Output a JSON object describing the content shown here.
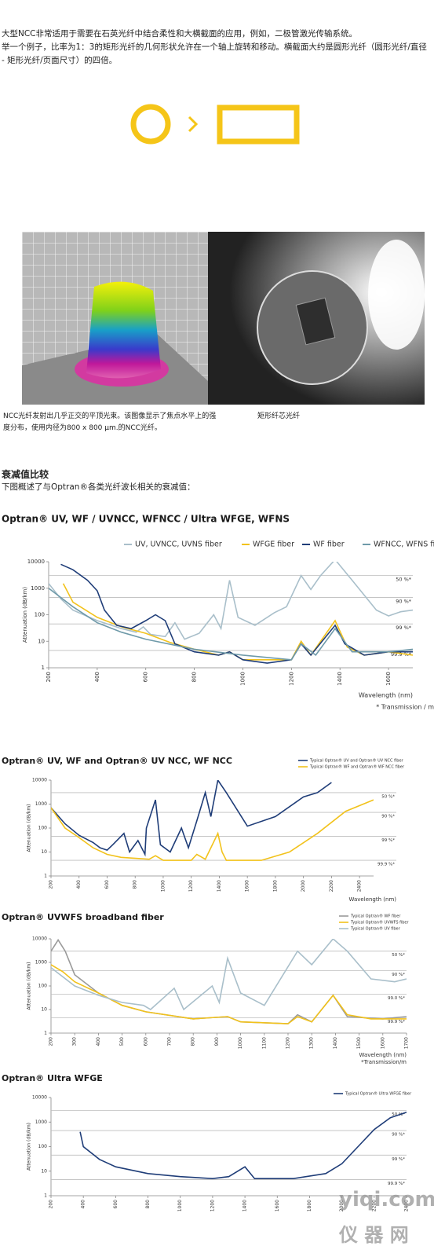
{
  "intro": {
    "paragraphs": [
      "大型NCC非常适用于需要在石英光纤中结合柔性和大横截面的应用，例如，二极管激光传输系统。",
      "举一个例子，比率为1：3的矩形光纤的几何形状允许在一个轴上旋转和移动。横截面大约是圆形光纤（圆形光纤/直径 - 矩形光纤/页面尺寸）的四倍。"
    ]
  },
  "captions": [
    "NCC光纤发射出几乎正交的平顶光束。该图像显示了焦点水平上的强度分布，使用内径为800 x 800  µm.的NCC光纤。",
    "矩形纤芯光纤"
  ],
  "section": {
    "heading": "衰减值比较",
    "text": "下图概述了与Optran®各类光纤波长相关的衰减值："
  },
  "watermark": {
    "site": "yiqi.com",
    "name": "仪 器 网"
  },
  "chart_data": [
    {
      "type": "line",
      "title": "Optran® UV, WF / UVNCC, WFNCC / Ultra WFGE, WFNS",
      "y_label": "Attenuation (dB/km)",
      "x_label": "Wavelength (nm)",
      "footnote": "* Transmission / m",
      "log_y": true,
      "xlim": [
        200,
        1700
      ],
      "ylim": [
        1,
        10000
      ],
      "xticks": [
        200,
        400,
        600,
        800,
        1000,
        1200,
        1400,
        1600
      ],
      "yticks": [
        1,
        10,
        100,
        1000,
        10000
      ],
      "reference_lines": [
        {
          "value": 3000,
          "label": "50 %*"
        },
        {
          "value": 450,
          "label": "90 %*"
        },
        {
          "value": 45,
          "label": "99 %*"
        },
        {
          "value": 4.5,
          "label": "99.9 %*"
        }
      ],
      "series": [
        {
          "name": "UV, UVNCC, UVNS fiber",
          "color": "#a9bfca",
          "x": [
            200,
            250,
            300,
            400,
            500,
            560,
            590,
            620,
            680,
            720,
            760,
            820,
            880,
            910,
            945,
            980,
            1050,
            1130,
            1180,
            1240,
            1280,
            1320,
            1380,
            1450,
            1550,
            1600,
            1650,
            1700
          ],
          "values": [
            1500,
            400,
            150,
            60,
            30,
            22,
            35,
            18,
            15,
            50,
            12,
            20,
            100,
            30,
            2000,
            80,
            40,
            120,
            200,
            3000,
            900,
            3000,
            12000,
            2000,
            150,
            90,
            130,
            150
          ]
        },
        {
          "name": "WFGE fiber",
          "color": "#f2c21b",
          "x": [
            260,
            300,
            400,
            500,
            600,
            700,
            800,
            900,
            945,
            1000,
            1200,
            1240,
            1280,
            1380,
            1430,
            1500,
            1600,
            1700
          ],
          "values": [
            1500,
            300,
            80,
            35,
            20,
            9,
            5,
            3,
            4,
            2,
            2,
            10,
            3,
            60,
            6,
            3,
            4,
            3
          ]
        },
        {
          "name": "WF fiber",
          "color": "#1f3d78",
          "x": [
            250,
            300,
            360,
            400,
            430,
            480,
            540,
            600,
            640,
            680,
            720,
            800,
            900,
            945,
            1000,
            1100,
            1200,
            1240,
            1280,
            1380,
            1420,
            1500,
            1600,
            1700
          ],
          "values": [
            8000,
            5000,
            2000,
            800,
            150,
            40,
            30,
            60,
            100,
            60,
            8,
            4,
            3,
            4,
            2,
            1.5,
            2,
            8,
            3,
            40,
            8,
            3,
            4,
            4
          ]
        },
        {
          "name": "WFNCC, WFNS fiber",
          "color": "#6f9aa9",
          "x": [
            200,
            300,
            400,
            500,
            600,
            800,
            1000,
            1200,
            1240,
            1300,
            1380,
            1450,
            1600,
            1700
          ],
          "values": [
            1000,
            200,
            50,
            22,
            12,
            5,
            3,
            2,
            8,
            3,
            30,
            4,
            4,
            5
          ]
        }
      ]
    },
    {
      "type": "line",
      "title": "Optran® UV, WF and Optran® UV NCC, WF NCC",
      "y_label": "Attenuation (dB/km)",
      "x_label": "Wavelength (nm)",
      "log_y": true,
      "xlim": [
        200,
        2500
      ],
      "ylim": [
        1,
        10000
      ],
      "xticks": [
        200,
        400,
        600,
        800,
        1000,
        1200,
        1400,
        1600,
        1800,
        2000,
        2200,
        2400
      ],
      "yticks": [
        1,
        10,
        100,
        1000,
        10000
      ],
      "reference_lines": [
        {
          "value": 3000,
          "label": "50 %*"
        },
        {
          "value": 450,
          "label": "90 %*"
        },
        {
          "value": 45,
          "label": "99 %*"
        },
        {
          "value": 4.5,
          "label": "99.9 %*"
        }
      ],
      "series": [
        {
          "name": "Typical Optran® UV and Optran® UV NCC fiber",
          "color": "#1f3d78",
          "x": [
            200,
            300,
            400,
            500,
            550,
            600,
            640,
            720,
            760,
            820,
            870,
            880,
            945,
            980,
            1050,
            1130,
            1180,
            1240,
            1300,
            1340,
            1390,
            1450,
            1600,
            1800,
            2000,
            2100,
            2200
          ],
          "values": [
            700,
            150,
            50,
            25,
            15,
            12,
            20,
            60,
            10,
            30,
            8,
            100,
            1500,
            20,
            10,
            100,
            15,
            200,
            3000,
            300,
            10000,
            3000,
            120,
            300,
            2000,
            3000,
            8000
          ]
        },
        {
          "name": "Typical Optran® WF and Optran® WF NCC fiber",
          "color": "#f2c21b",
          "x": [
            200,
            300,
            400,
            500,
            600,
            700,
            900,
            945,
            1000,
            1200,
            1240,
            1300,
            1390,
            1420,
            1450,
            1700,
            1900,
            2100,
            2300,
            2500
          ],
          "values": [
            700,
            100,
            40,
            15,
            8,
            6,
            5,
            7,
            4.5,
            4.5,
            8,
            5,
            60,
            10,
            4.5,
            4.5,
            10,
            60,
            500,
            1500
          ]
        }
      ]
    },
    {
      "type": "line",
      "title": "Optran® UVWFS broadband fiber",
      "y_label": "Attenuation (dB/km)",
      "x_label": "Wavelength (nm)",
      "footnote": "*Transmission/m",
      "log_y": true,
      "xlim": [
        200,
        1700
      ],
      "ylim": [
        1,
        10000
      ],
      "xticks": [
        200,
        300,
        400,
        500,
        600,
        700,
        800,
        900,
        1000,
        1100,
        1200,
        1300,
        1400,
        1500,
        1600,
        1700
      ],
      "yticks": [
        1,
        10,
        100,
        1000,
        10000
      ],
      "reference_lines": [
        {
          "value": 3000,
          "label": "50 %*"
        },
        {
          "value": 450,
          "label": "90 %*"
        },
        {
          "value": 45,
          "label": "99.0 %*"
        },
        {
          "value": 4.5,
          "label": "99.9 %*"
        }
      ],
      "series": [
        {
          "name": "Typical Optran® WF fiber",
          "color": "#9a9a9a",
          "x": [
            200,
            230,
            260,
            300,
            400,
            500,
            600,
            800,
            945,
            1000,
            1200,
            1240,
            1300,
            1390,
            1450,
            1600,
            1700
          ],
          "values": [
            3000,
            9000,
            3000,
            300,
            50,
            15,
            8,
            4,
            5,
            3,
            2.5,
            6,
            3,
            40,
            5,
            4,
            5
          ]
        },
        {
          "name": "Typical Optran® UVWFS fiber",
          "color": "#f2c21b",
          "x": [
            200,
            250,
            300,
            400,
            500,
            600,
            800,
            945,
            1000,
            1200,
            1240,
            1300,
            1390,
            1450,
            1550,
            1700
          ],
          "values": [
            800,
            400,
            150,
            50,
            15,
            8,
            4,
            5,
            3,
            2.5,
            5,
            3,
            40,
            6,
            4,
            4
          ]
        },
        {
          "name": "Typical Optran® UV fiber",
          "color": "#a9bfca",
          "x": [
            200,
            300,
            400,
            500,
            590,
            620,
            720,
            760,
            880,
            910,
            945,
            1000,
            1100,
            1240,
            1300,
            1390,
            1450,
            1550,
            1650,
            1700
          ],
          "values": [
            600,
            100,
            40,
            20,
            15,
            10,
            80,
            10,
            100,
            20,
            1500,
            50,
            15,
            3000,
            800,
            10000,
            3000,
            200,
            150,
            200
          ]
        }
      ]
    },
    {
      "type": "line",
      "title": "Optran® Ultra WFGE",
      "y_label": "Attenuation (dB/km)",
      "log_y": true,
      "xlim": [
        200,
        2400
      ],
      "ylim": [
        1,
        10000
      ],
      "xticks": [
        200,
        400,
        600,
        800,
        1000,
        1200,
        1400,
        1600,
        1800,
        2000,
        2200,
        2400
      ],
      "yticks": [
        1,
        10,
        100,
        1000,
        10000
      ],
      "reference_lines": [
        {
          "value": 3000,
          "label": "50 %*"
        },
        {
          "value": 450,
          "label": "90 %*"
        },
        {
          "value": 45,
          "label": "99 %*"
        },
        {
          "value": 4.5,
          "label": "99.9 %*"
        }
      ],
      "series": [
        {
          "name": "Typical Optran® Ultra WFGE fiber",
          "color": "#1f3d78",
          "x": [
            380,
            400,
            500,
            600,
            800,
            1000,
            1200,
            1300,
            1400,
            1460,
            1700,
            1900,
            2000,
            2100,
            2200,
            2300,
            2400
          ],
          "values": [
            400,
            100,
            30,
            15,
            8,
            6,
            5,
            6,
            15,
            5,
            5,
            8,
            20,
            100,
            500,
            1500,
            2500
          ]
        }
      ]
    }
  ]
}
